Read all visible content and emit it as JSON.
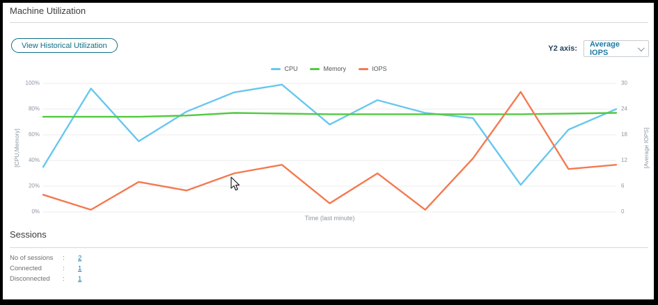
{
  "header": {
    "title": "Machine Utilization"
  },
  "toolbar": {
    "view_historical_label": "View Historical Utilization",
    "y2_axis_label": "Y2 axis:",
    "y2_axis_value": "Average IOPS"
  },
  "chart_data": {
    "type": "line",
    "title": "",
    "xlabel": "Time (last minute)",
    "y1_axis_label": "[CPU,Memory]",
    "y2_axis_label": "[Average IOPS]",
    "y1_ticks": [
      "100%",
      "80%",
      "60%",
      "40%",
      "20%",
      "0%"
    ],
    "y2_ticks": [
      "30",
      "24",
      "18",
      "12",
      "6",
      "0"
    ],
    "y1_range": [
      0,
      100
    ],
    "y2_range": [
      0,
      30
    ],
    "grid": true,
    "legend_position": "top",
    "x_points": 13,
    "series": [
      {
        "name": "CPU",
        "axis": "y1",
        "color": "#67c7ee",
        "values": [
          35,
          96,
          55,
          78,
          93,
          99,
          68,
          87,
          77,
          73,
          21,
          64,
          80
        ]
      },
      {
        "name": "Memory",
        "axis": "y1",
        "color": "#52c93f",
        "values": [
          74,
          74,
          74,
          75,
          77,
          76.5,
          76,
          76,
          76,
          76,
          76,
          76.5,
          77
        ]
      },
      {
        "name": "IOPS",
        "axis": "y2",
        "color": "#f4794f",
        "values": [
          4,
          0.5,
          7,
          5,
          9,
          11,
          2,
          9,
          0.5,
          12.5,
          28,
          10,
          11
        ]
      }
    ]
  },
  "sessions": {
    "title": "Sessions",
    "rows": [
      {
        "label": "No of sessions",
        "separator": ":",
        "value": "2"
      },
      {
        "label": "Connected",
        "separator": ":",
        "value": "1"
      },
      {
        "label": "Disconnected",
        "separator": ":",
        "value": "1"
      }
    ]
  },
  "colors": {
    "accent_teal": "#0e6f85",
    "link": "#1479a8",
    "gridline": "#ebebeb",
    "tick_text": "#8d97a3"
  }
}
